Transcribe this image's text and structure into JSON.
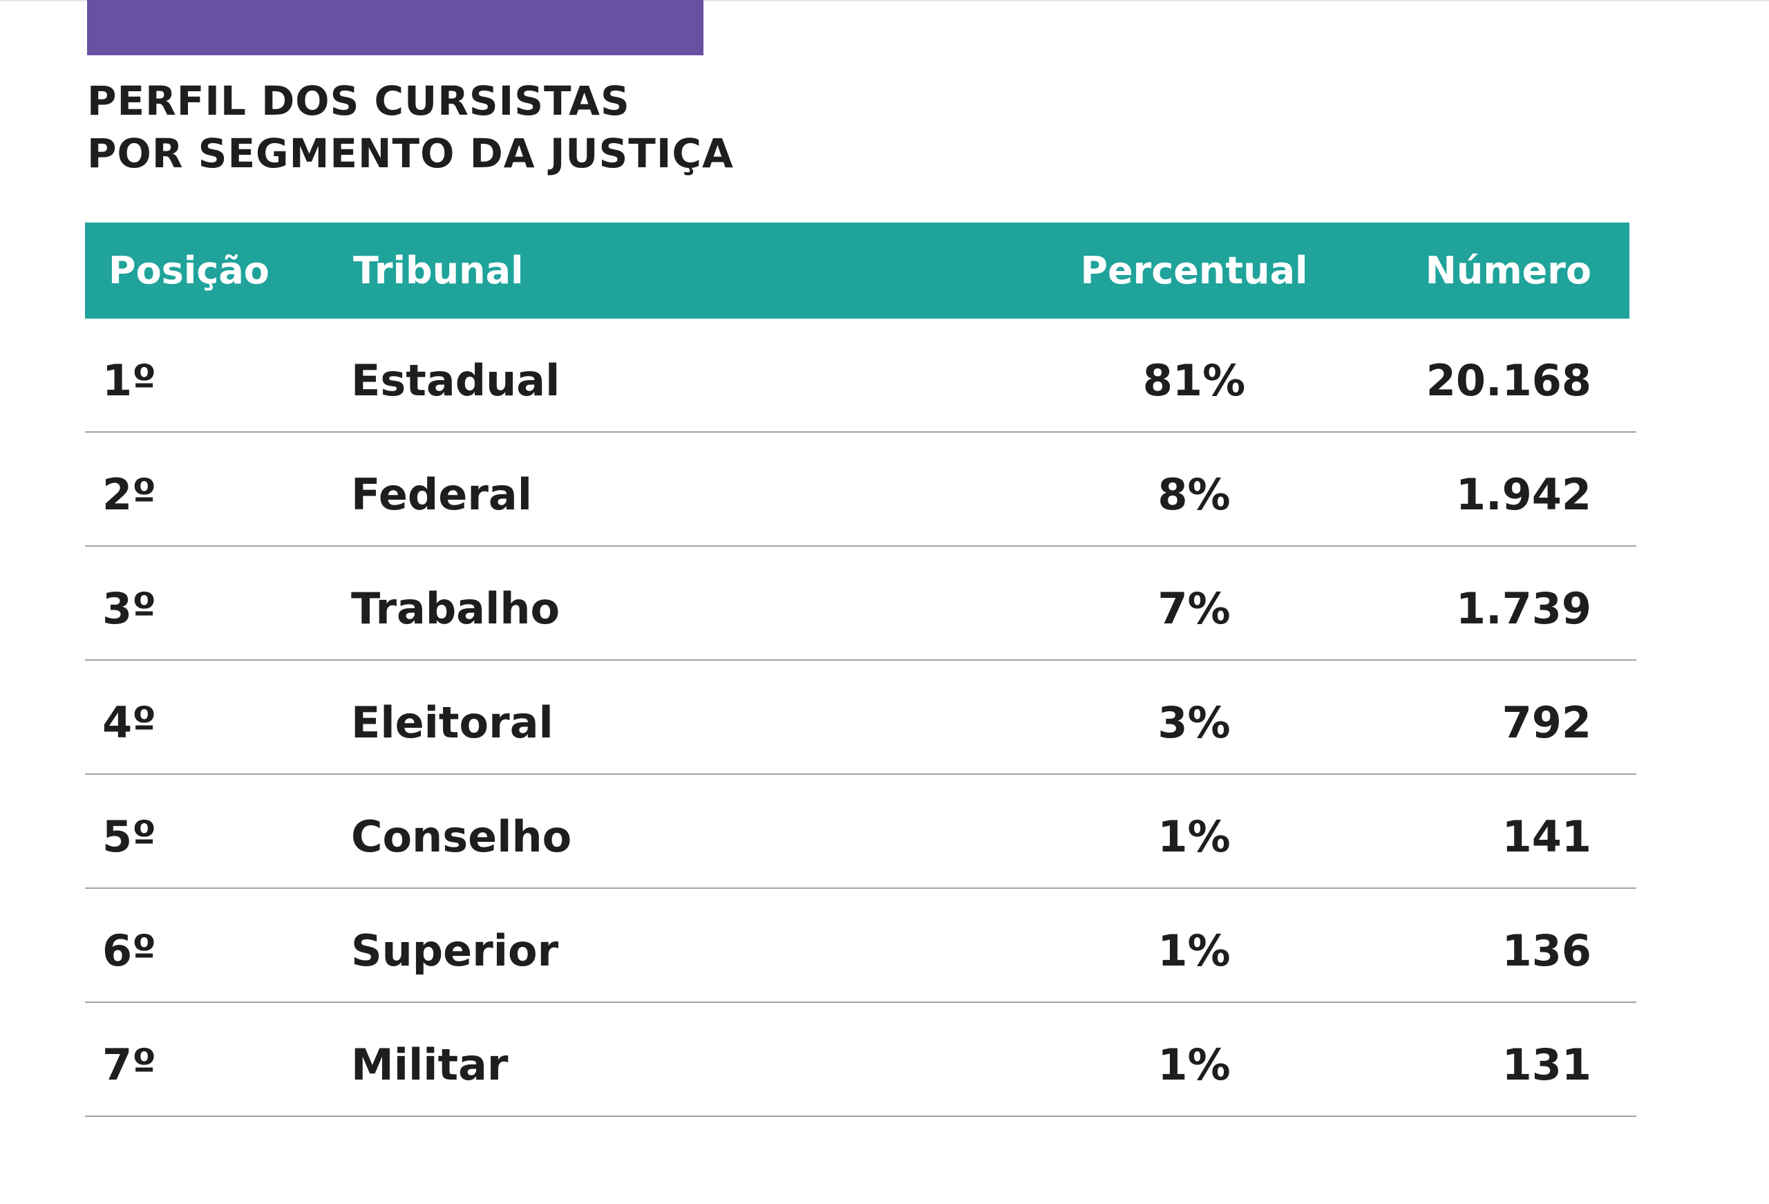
{
  "colors": {
    "accent_bar": "#6950a1",
    "header_bg": "#1fa39b",
    "text": "#1e1e1e",
    "header_text": "#ffffff",
    "row_divider": "#a3a3a3"
  },
  "title": {
    "line1": "PERFIL DOS CURSISTAS",
    "line2": "POR SEGMENTO DA JUSTIÇA"
  },
  "table": {
    "headers": {
      "position": "Posição",
      "court": "Tribunal",
      "percent": "Percentual",
      "number": "Número"
    },
    "rows": [
      {
        "position": "1º",
        "court": "Estadual",
        "percent": "81%",
        "number": "20.168"
      },
      {
        "position": "2º",
        "court": "Federal",
        "percent": "8%",
        "number": "1.942"
      },
      {
        "position": "3º",
        "court": "Trabalho",
        "percent": "7%",
        "number": "1.739"
      },
      {
        "position": "4º",
        "court": "Eleitoral",
        "percent": "3%",
        "number": "792"
      },
      {
        "position": "5º",
        "court": "Conselho",
        "percent": "1%",
        "number": "141"
      },
      {
        "position": "6º",
        "court": "Superior",
        "percent": "1%",
        "number": "136"
      },
      {
        "position": "7º",
        "court": "Militar",
        "percent": "1%",
        "number": "131"
      }
    ]
  }
}
